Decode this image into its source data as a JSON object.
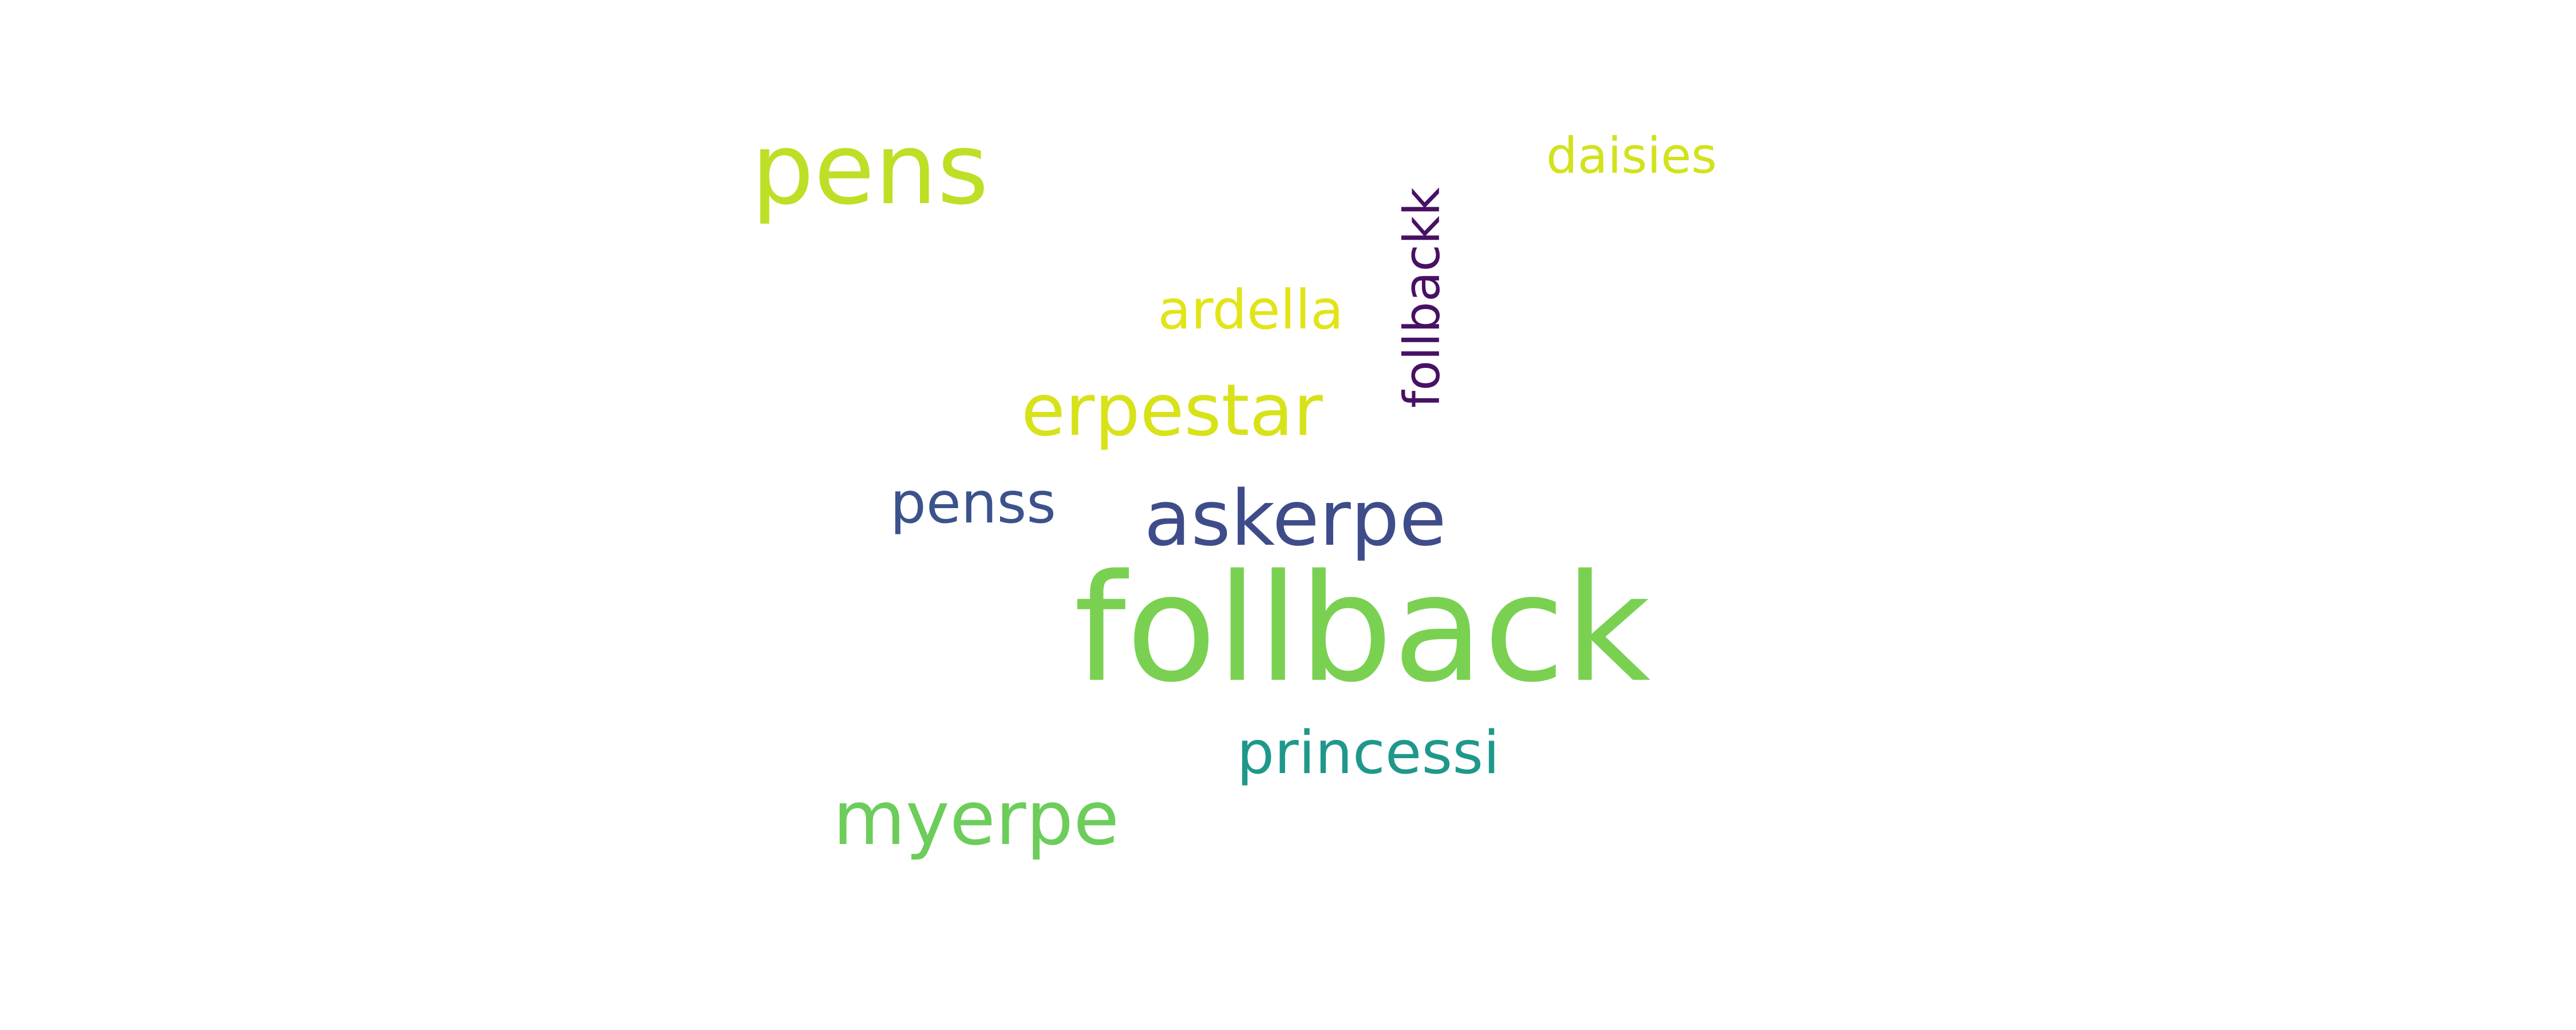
{
  "cloud": {
    "background": "#ffffff",
    "words": [
      {
        "text": "follback",
        "color": "#7ad151"
      },
      {
        "text": "pens",
        "color": "#bddf26"
      },
      {
        "text": "daisies",
        "color": "#d2e21b"
      },
      {
        "text": "follbackk",
        "color": "#471164"
      },
      {
        "text": "ardella",
        "color": "#e2e418"
      },
      {
        "text": "erpestar",
        "color": "#d8e219"
      },
      {
        "text": "penss",
        "color": "#3b528b"
      },
      {
        "text": "askerpe",
        "color": "#3e4c8a"
      },
      {
        "text": "princessi",
        "color": "#1f988b"
      },
      {
        "text": "myerpe",
        "color": "#6ccd5a"
      }
    ]
  }
}
